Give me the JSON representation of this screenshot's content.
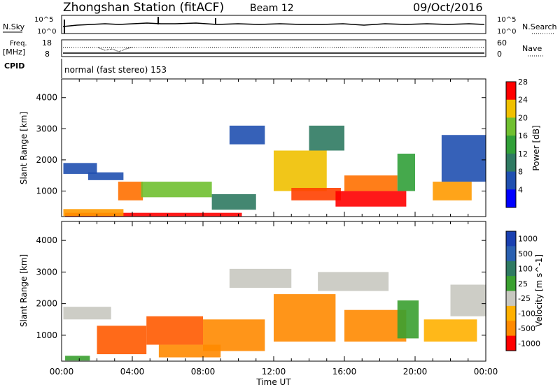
{
  "header": {
    "station": "Zhongshan Station (fitACF)",
    "beam": "Beam 12",
    "date": "09/Oct/2016"
  },
  "strip_labels": {
    "nsky": "N.Sky",
    "nsearch": "N.Search",
    "freq_line1": "Freq.",
    "freq_line2": "[MHz]",
    "nave": "Nave",
    "cpid": "CPID",
    "cpid_value": "normal (fast stereo) 153"
  },
  "strip_ticks": {
    "nsky_top": "10^5",
    "nsky_bottom": "10^0",
    "nsearch_top": "10^5",
    "nsearch_bottom": "10^0",
    "freq_top": "18",
    "freq_bottom": "8",
    "nave_top": "60",
    "nave_bottom": "0"
  },
  "colors": {
    "power": [
      "#0000ff",
      "#2050b0",
      "#2f7a62",
      "#31a038",
      "#70c030",
      "#f0c000",
      "#ff9a00",
      "#ff7000",
      "#ff4000",
      "#ff0000"
    ],
    "velocity": [
      "#1a40b0",
      "#2a60b0",
      "#2f7a62",
      "#3aa030",
      "#80c840",
      "#c8c8c0",
      "#ffb000",
      "#ff8a00",
      "#ff5a00",
      "#ff0000"
    ]
  },
  "chart_data": [
    {
      "type": "heatmap",
      "parameter": "power",
      "ylabel": "Slant Range [km]",
      "xlabel": "Time UT",
      "x_ticks": [
        "00:00",
        "04:00",
        "08:00",
        "12:00",
        "16:00",
        "20:00",
        "00:00"
      ],
      "xlim_hours": [
        0,
        24
      ],
      "ylim": [
        180,
        4600
      ],
      "y_ticks": [
        1000,
        2000,
        3000,
        4000
      ],
      "colorbar_label": "Power [dB]",
      "colorbar_ticks": [
        "4",
        "8",
        "12",
        "16",
        "20",
        "24",
        "28"
      ],
      "regions": [
        {
          "t0": 0.2,
          "t1": 10.2,
          "r0": 190,
          "r1": 300,
          "level": 9
        },
        {
          "t0": 0.1,
          "t1": 3.5,
          "r0": 200,
          "r1": 420,
          "level": 6
        },
        {
          "t0": 0.1,
          "t1": 2.0,
          "r0": 1550,
          "r1": 1900,
          "level": 1
        },
        {
          "t0": 1.5,
          "t1": 3.5,
          "r0": 1350,
          "r1": 1600,
          "level": 1
        },
        {
          "t0": 3.2,
          "t1": 4.6,
          "r0": 700,
          "r1": 1300,
          "level": 7
        },
        {
          "t0": 4.5,
          "t1": 8.5,
          "r0": 800,
          "r1": 1300,
          "level": 4
        },
        {
          "t0": 8.5,
          "t1": 11.0,
          "r0": 400,
          "r1": 900,
          "level": 2
        },
        {
          "t0": 9.5,
          "t1": 11.5,
          "r0": 2500,
          "r1": 3100,
          "level": 1
        },
        {
          "t0": 12.0,
          "t1": 15.0,
          "r0": 1000,
          "r1": 2300,
          "level": 5
        },
        {
          "t0": 13.0,
          "t1": 15.8,
          "r0": 700,
          "r1": 1100,
          "level": 8
        },
        {
          "t0": 14.0,
          "t1": 16.0,
          "r0": 2300,
          "r1": 3100,
          "level": 2
        },
        {
          "t0": 15.5,
          "t1": 19.5,
          "r0": 500,
          "r1": 1000,
          "level": 9
        },
        {
          "t0": 16.0,
          "t1": 19.0,
          "r0": 1000,
          "r1": 1500,
          "level": 7
        },
        {
          "t0": 19.0,
          "t1": 20.0,
          "r0": 1000,
          "r1": 2200,
          "level": 3
        },
        {
          "t0": 21.0,
          "t1": 23.2,
          "r0": 700,
          "r1": 1300,
          "level": 6
        },
        {
          "t0": 21.5,
          "t1": 24.0,
          "r0": 1300,
          "r1": 2800,
          "level": 1
        }
      ]
    },
    {
      "type": "heatmap",
      "parameter": "velocity",
      "ylabel": "Slant Range [km]",
      "xlabel": "Time UT",
      "x_ticks": [
        "00:00",
        "04:00",
        "08:00",
        "12:00",
        "16:00",
        "20:00",
        "00:00"
      ],
      "xlim_hours": [
        0,
        24
      ],
      "ylim": [
        180,
        4600
      ],
      "y_ticks": [
        1000,
        2000,
        3000,
        4000
      ],
      "colorbar_label": "Velocity [m s^-1]",
      "colorbar_ticks": [
        "1000",
        "500",
        "100",
        "25",
        "-25",
        "-100",
        "-500",
        "-1000"
      ],
      "regions": [
        {
          "t0": 0.1,
          "t1": 2.8,
          "r0": 1500,
          "r1": 1900,
          "level": 5
        },
        {
          "t0": 0.2,
          "t1": 1.6,
          "r0": 200,
          "r1": 350,
          "level": 3
        },
        {
          "t0": 2.0,
          "t1": 4.8,
          "r0": 400,
          "r1": 1300,
          "level": 8
        },
        {
          "t0": 4.8,
          "t1": 8.0,
          "r0": 700,
          "r1": 1600,
          "level": 8
        },
        {
          "t0": 5.5,
          "t1": 9.0,
          "r0": 300,
          "r1": 700,
          "level": 7
        },
        {
          "t0": 8.0,
          "t1": 11.5,
          "r0": 500,
          "r1": 1500,
          "level": 7
        },
        {
          "t0": 9.5,
          "t1": 13.0,
          "r0": 2500,
          "r1": 3100,
          "level": 5
        },
        {
          "t0": 12.0,
          "t1": 15.5,
          "r0": 800,
          "r1": 2300,
          "level": 7
        },
        {
          "t0": 14.5,
          "t1": 18.5,
          "r0": 2400,
          "r1": 3000,
          "level": 5
        },
        {
          "t0": 16.0,
          "t1": 19.5,
          "r0": 800,
          "r1": 1800,
          "level": 7
        },
        {
          "t0": 19.0,
          "t1": 20.2,
          "r0": 900,
          "r1": 2100,
          "level": 3
        },
        {
          "t0": 20.5,
          "t1": 23.5,
          "r0": 800,
          "r1": 1500,
          "level": 6
        },
        {
          "t0": 22.0,
          "t1": 24.0,
          "r0": 1600,
          "r1": 2600,
          "level": 5
        }
      ]
    }
  ]
}
